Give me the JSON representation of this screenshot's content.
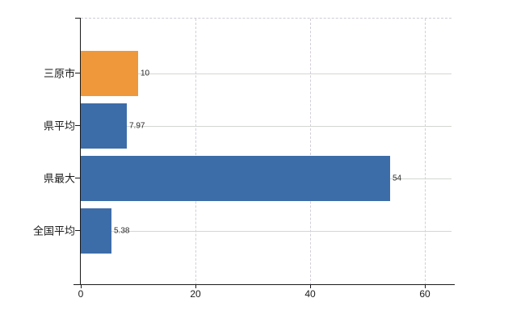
{
  "chart": {
    "background": "#ffffff",
    "axis_color": "#1a1a1a",
    "h_gridline_color": "#d3d8d0",
    "v_gridline_color": "#d2cdd8",
    "label_color": "#1a1a1a",
    "value_label_color": "#2b2b2b"
  },
  "chart_data": {
    "type": "bar",
    "orientation": "horizontal",
    "title": "",
    "xlabel": "",
    "ylabel": "",
    "categories": [
      "三原市",
      "県平均",
      "県最大",
      "全国平均"
    ],
    "values": [
      10,
      7.97,
      54,
      5.38
    ],
    "value_labels": [
      "10",
      "7.97",
      "54",
      "5.38"
    ],
    "bar_colors": [
      "#EF973B",
      "#3D6DA9",
      "#3D6DA9",
      "#3D6DA9"
    ],
    "x_ticks": [
      0,
      20,
      40,
      60
    ],
    "x_tick_labels": [
      "0",
      "20",
      "40",
      "60"
    ],
    "xlim": [
      0,
      64.6
    ],
    "grid": true,
    "legend": "none"
  }
}
